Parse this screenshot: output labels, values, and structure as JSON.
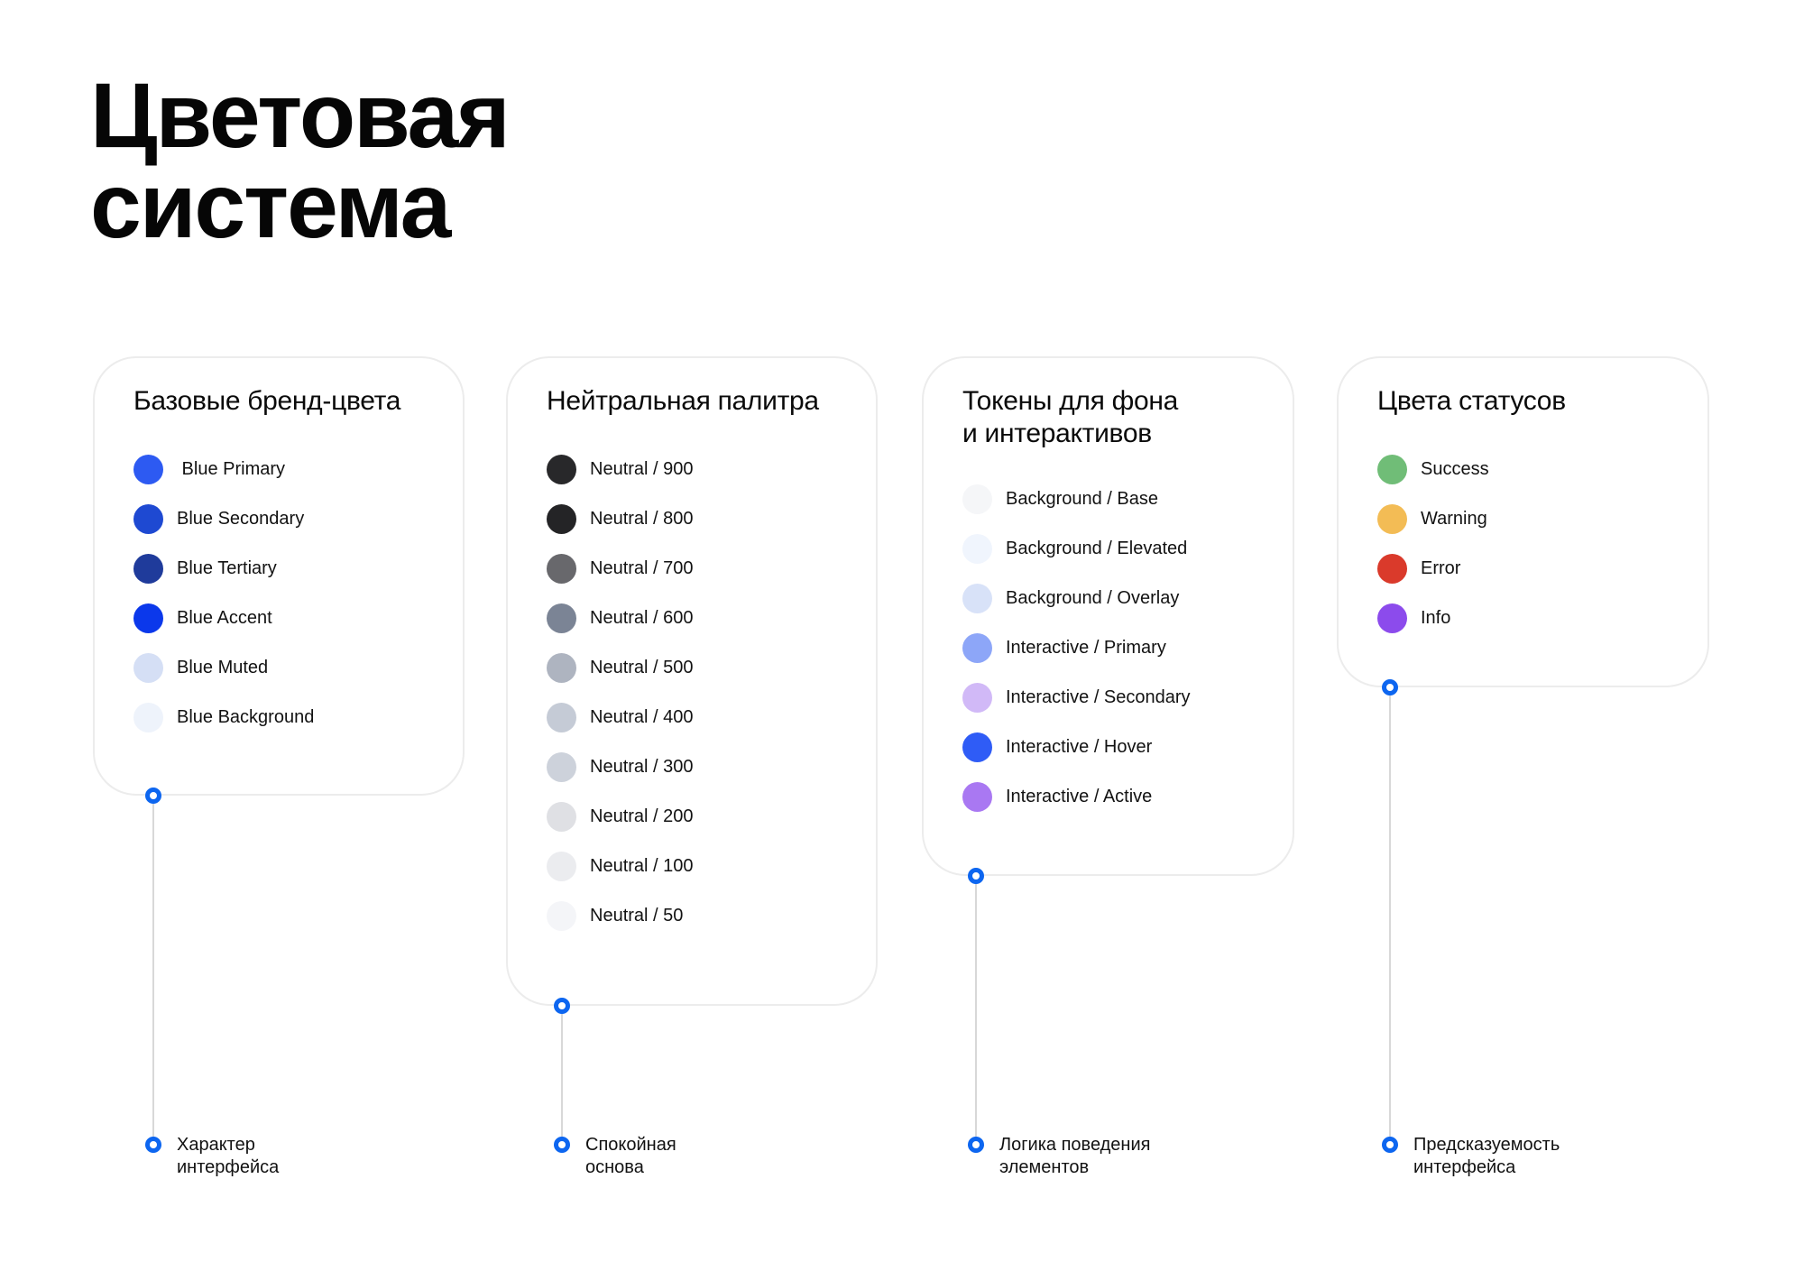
{
  "title": "Цветовая\nсистема",
  "cards": [
    {
      "title": "Базовые бренд-цвета",
      "items": [
        {
          "label": " Blue Primary",
          "color": "#2d5af2"
        },
        {
          "label": "Blue Secondary",
          "color": "#1e49d2"
        },
        {
          "label": "Blue Tertiary",
          "color": "#1f3b9b"
        },
        {
          "label": "Blue Accent",
          "color": "#0b38eb"
        },
        {
          "label": "Blue Muted",
          "color": "#d5dff5"
        },
        {
          "label": "Blue Background",
          "color": "#eef3fb"
        }
      ],
      "caption": "Характер\nинтерфейса"
    },
    {
      "title": "Нейтральная палитра",
      "items": [
        {
          "label": "Neutral / 900",
          "color": "#28282a"
        },
        {
          "label": "Neutral / 800",
          "color": "#242426"
        },
        {
          "label": "Neutral / 700",
          "color": "#68686c"
        },
        {
          "label": "Neutral / 600",
          "color": "#7b8495"
        },
        {
          "label": "Neutral / 500",
          "color": "#aeb4c0"
        },
        {
          "label": "Neutral / 400",
          "color": "#c5cbd6"
        },
        {
          "label": "Neutral / 300",
          "color": "#cdd2db"
        },
        {
          "label": "Neutral / 200",
          "color": "#dfe0e4"
        },
        {
          "label": "Neutral / 100",
          "color": "#ebecef"
        },
        {
          "label": "Neutral / 50",
          "color": "#f4f5f8"
        }
      ],
      "caption": "Спокойная\nоснова"
    },
    {
      "title": "Токены для фона\nи интерактивов",
      "items": [
        {
          "label": "Background / Base",
          "color": "#f5f6f8"
        },
        {
          "label": "Background / Elevated",
          "color": "#f0f5fd"
        },
        {
          "label": "Background / Overlay",
          "color": "#d8e2f8"
        },
        {
          "label": "Interactive / Primary",
          "color": "#8da6f8"
        },
        {
          "label": "Interactive / Secondary",
          "color": "#d1b9f7"
        },
        {
          "label": "Interactive / Hover",
          "color": "#2f5cf6"
        },
        {
          "label": "Interactive / Active",
          "color": "#a978f2"
        }
      ],
      "caption": "Логика поведения\nэлементов"
    },
    {
      "title": "Цвета статусов",
      "items": [
        {
          "label": "Success",
          "color": "#70bd77"
        },
        {
          "label": "Warning",
          "color": "#f3bc55"
        },
        {
          "label": "Error",
          "color": "#da3a2b"
        },
        {
          "label": "Info",
          "color": "#8c4bec"
        }
      ],
      "caption": "Предсказуемость\nинтерфейса"
    }
  ],
  "colors": {
    "connector_ring": "#0d66f0",
    "connector_line": "#d8d8d8",
    "card_border": "#ececec",
    "text": "#0a0a0a"
  }
}
